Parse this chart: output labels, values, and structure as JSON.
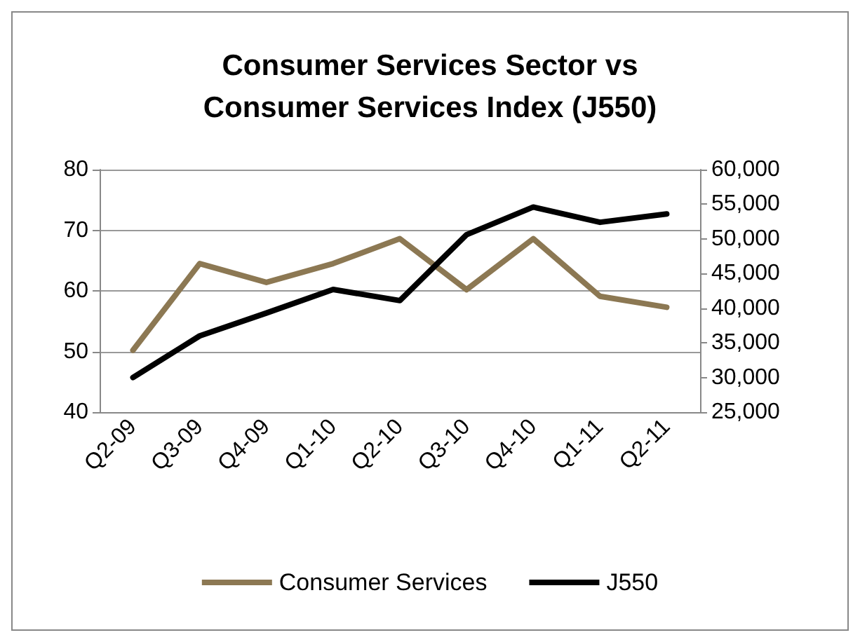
{
  "chart_data": {
    "type": "line",
    "title": "Consumer Services Sector vs\nConsumer Services Index (J550)",
    "categories": [
      "Q2-09",
      "Q3-09",
      "Q4-09",
      "Q1-10",
      "Q2-10",
      "Q3-10",
      "Q4-10",
      "Q1-11",
      "Q2-11"
    ],
    "series": [
      {
        "name": "Consumer Services",
        "color": "#8c7853",
        "values": [
          50.2,
          64.5,
          61.4,
          64.5,
          68.6,
          60.2,
          68.6,
          59.1,
          57.3
        ]
      },
      {
        "name": "J550",
        "color": "#000000",
        "axis": "y2",
        "values": [
          30000,
          36000,
          39300,
          42700,
          41100,
          50600,
          54600,
          52400,
          53600
        ]
      }
    ],
    "ylim": [
      40,
      80
    ],
    "yticks": [
      40,
      50,
      60,
      70,
      80
    ],
    "y2lim": [
      25000,
      60000
    ],
    "y2ticks": [
      {
        "value": 25000,
        "label": "25,000"
      },
      {
        "value": 30000,
        "label": "30,000"
      },
      {
        "value": 35000,
        "label": "35,000"
      },
      {
        "value": 40000,
        "label": "40,000"
      },
      {
        "value": 45000,
        "label": "45,000"
      },
      {
        "value": 50000,
        "label": "50,000"
      },
      {
        "value": 55000,
        "label": "55,000"
      },
      {
        "value": 60000,
        "label": "60,000"
      }
    ],
    "grid": "y",
    "legend": "bottom",
    "marker": "none",
    "line_style": "solid"
  }
}
